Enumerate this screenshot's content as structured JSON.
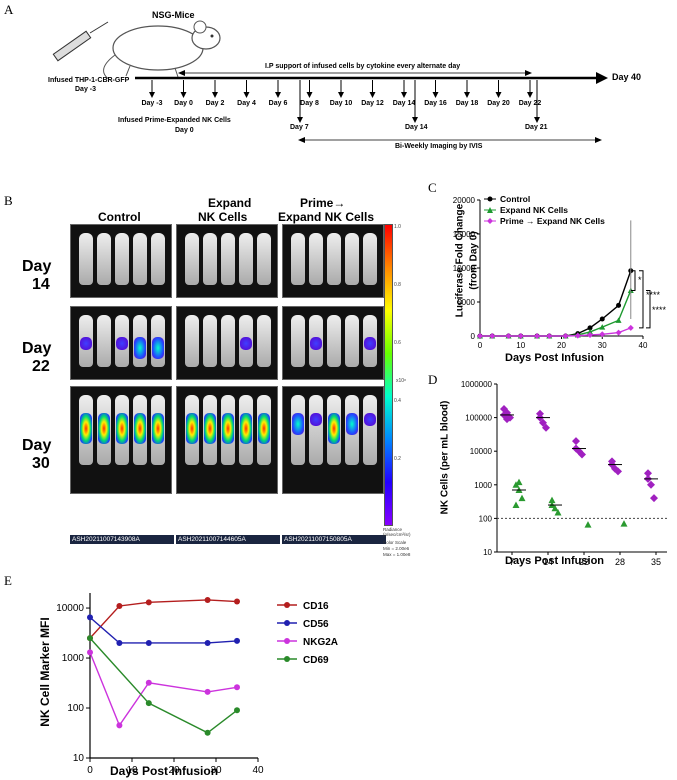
{
  "panel_labels": {
    "a": "A",
    "b": "B",
    "c": "C",
    "d": "D",
    "e": "E"
  },
  "timeline": {
    "mouse_label": "NSG-Mice",
    "infused_line1": "Infused THP-1-CBR-GFP",
    "infused_line2": "Day -3",
    "ip_support": "I.P support of infused cells by cytokine every alternate day",
    "day40": "Day 40",
    "days": [
      "Day -3",
      "Day 0",
      "Day 2",
      "Day 4",
      "Day 6",
      "Day 8",
      "Day 10",
      "Day 12",
      "Day 14",
      "Day 16",
      "Day 18",
      "Day 20",
      "Day 22"
    ],
    "infused_nk_line1": "Infused Prime-Expanded NK Cells",
    "infused_nk_line2": "Day 0",
    "imaging_days": [
      "Day 7",
      "Day 14",
      "Day 21"
    ],
    "imaging_label": "Bi-Weekly Imaging by IVIS"
  },
  "panel_b": {
    "col_control": "Control",
    "col_expand_1": "Expand",
    "col_expand_2": "NK Cells",
    "col_prime_1": "Prime→",
    "col_prime_2": "Expand NK Cells",
    "rows": [
      {
        "day": "Day",
        "num": "14"
      },
      {
        "day": "Day",
        "num": "22"
      },
      {
        "day": "Day",
        "num": "30"
      }
    ],
    "ids": [
      "ASH20211007143908A",
      "ASH20211007144605A",
      "ASH20211007150805A"
    ],
    "scale_ticks": [
      "1.0",
      "0.8",
      "0.6",
      "0.4",
      "0.2"
    ],
    "scale_exp": "x10⁸",
    "scale_caption": "Radiance (p/sec/cm²/sr)",
    "scale_color": "Color Scale",
    "scale_min": "Min = 2.00e6",
    "scale_max": "Max = 1.00e8"
  },
  "chart_data": [
    {
      "type": "line",
      "title": "C",
      "xlabel": "Days Post Infusion",
      "ylabel_1": "Luciferase Fold Change",
      "ylabel_2": "(from Day 0)",
      "xlim": [
        0,
        40
      ],
      "ylim": [
        0,
        20000
      ],
      "xticks": [
        "0",
        "10",
        "20",
        "30",
        "40"
      ],
      "yticks": [
        "0",
        "5000",
        "10000",
        "15000",
        "20000"
      ],
      "x": [
        0,
        3,
        7,
        10,
        14,
        17,
        21,
        24,
        27,
        30,
        34,
        37
      ],
      "series": [
        {
          "name": "Control",
          "color": "#000000",
          "values": [
            0,
            0,
            0,
            0,
            0,
            0,
            0,
            350,
            1200,
            2500,
            4500,
            9600
          ]
        },
        {
          "name": "Expand NK Cells",
          "color": "#1e9a30",
          "values": [
            0,
            0,
            0,
            0,
            0,
            0,
            0,
            150,
            600,
            1300,
            2300,
            6700
          ]
        },
        {
          "name": "Prime → Expand NK Cells",
          "color": "#cc33dd",
          "values": [
            0,
            0,
            0,
            0,
            0,
            0,
            0,
            50,
            150,
            250,
            500,
            1200
          ]
        }
      ],
      "significance": [
        "*",
        "****",
        "****"
      ]
    },
    {
      "type": "scatter",
      "title": "D",
      "xlabel": "Days Post Infusion",
      "ylabel": "NK Cells (per mL blood)",
      "yscale": "log",
      "ylim": [
        10,
        1000000
      ],
      "yticks": [
        "1000000",
        "100000",
        "10000",
        "1000",
        "100",
        "10"
      ],
      "xticks": [
        "7",
        "14",
        "22",
        "28",
        "35"
      ],
      "threshold": 100,
      "groups": [
        {
          "day": 7,
          "series": "Prime",
          "color": "#a020c0",
          "values": [
            120000,
            140000,
            100000,
            180000,
            90000
          ]
        },
        {
          "day": 7,
          "series": "Expand",
          "color": "#2a9a30",
          "values": [
            1000,
            700,
            400,
            250,
            1200
          ]
        },
        {
          "day": 14,
          "series": "Prime",
          "color": "#a020c0",
          "values": [
            100000,
            70000,
            50000,
            130000
          ]
        },
        {
          "day": 14,
          "series": "Expand",
          "color": "#2a9a30",
          "values": [
            350,
            200,
            150,
            250
          ]
        },
        {
          "day": 22,
          "series": "Prime",
          "color": "#a020c0",
          "values": [
            20000,
            10000,
            8000,
            12000
          ]
        },
        {
          "day": 22,
          "series": "Expand",
          "color": "#2a9a30",
          "values": [
            65
          ]
        },
        {
          "day": 28,
          "series": "Prime",
          "color": "#a020c0",
          "values": [
            5000,
            3000,
            2500,
            4000
          ]
        },
        {
          "day": 28,
          "series": "Expand",
          "color": "#2a9a30",
          "values": [
            70
          ]
        },
        {
          "day": 35,
          "series": "Prime",
          "color": "#a020c0",
          "values": [
            2200,
            1000,
            400,
            1500
          ]
        }
      ]
    },
    {
      "type": "line",
      "title": "E",
      "xlabel": "Days Post Infusion",
      "ylabel": "NK Cell Marker MFI",
      "yscale": "log",
      "ylim": [
        10,
        20000
      ],
      "yticks": [
        "10000",
        "1000",
        "100",
        "10"
      ],
      "xticks": [
        "0",
        "10",
        "20",
        "30",
        "40"
      ],
      "x": [
        0,
        7,
        14,
        28,
        35
      ],
      "series": [
        {
          "name": "CD16",
          "color": "#b41e1e",
          "values": [
            2500,
            11000,
            13000,
            14500,
            13500
          ]
        },
        {
          "name": "CD56",
          "color": "#2020b0",
          "values": [
            6500,
            2000,
            2000,
            2000,
            2200
          ]
        },
        {
          "name": "NKG2A",
          "color": "#cc33dd",
          "values": [
            1300,
            45,
            320,
            210,
            260
          ]
        },
        {
          "name": "CD69",
          "color": "#2a8a2a",
          "values": [
            2500,
            null,
            125,
            32,
            90
          ]
        }
      ]
    }
  ]
}
